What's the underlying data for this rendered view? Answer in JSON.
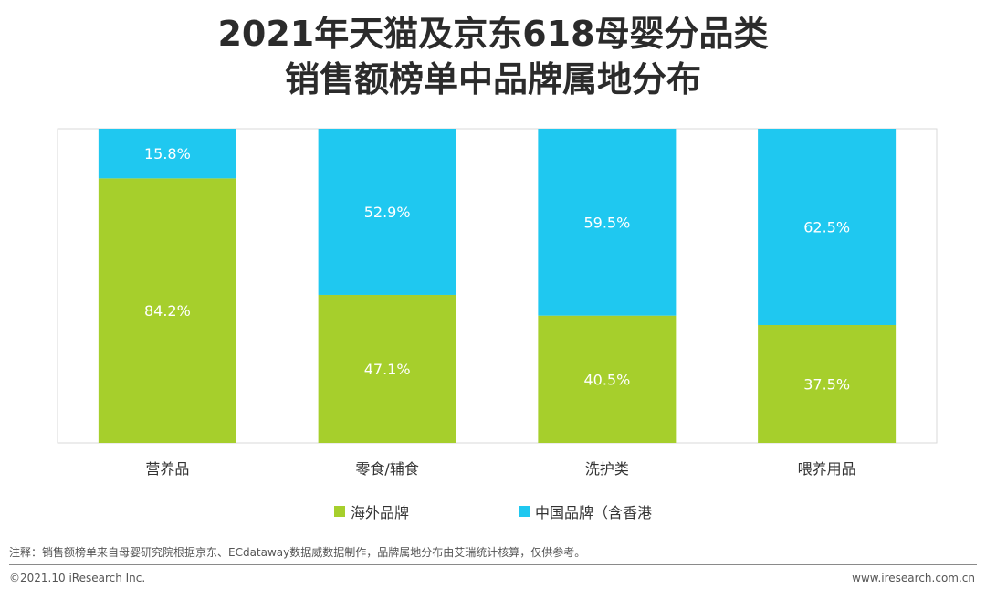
{
  "header": {
    "title_line1": "2021年天猫及京东618母婴分品类",
    "title_line2": "销售额榜单中品牌属地分布"
  },
  "chart_data": {
    "type": "bar",
    "stacked": true,
    "percent_stacked": true,
    "categories": [
      "营养品",
      "零食/辅食",
      "洗护类",
      "喂养用品"
    ],
    "series": [
      {
        "name": "海外品牌",
        "values": [
          84.2,
          47.1,
          40.5,
          37.5
        ],
        "labels": [
          "84.2%",
          "47.1%",
          "40.5%",
          "37.5%"
        ],
        "color": "#A6CF2C"
      },
      {
        "name": "中国品牌（含香港",
        "values": [
          15.8,
          52.9,
          59.5,
          62.5
        ],
        "labels": [
          "15.8%",
          "52.9%",
          "59.5%",
          "62.5%"
        ],
        "color": "#1FC8F0"
      }
    ],
    "ylim": [
      0,
      100
    ],
    "grid": false,
    "legend_position": "bottom"
  },
  "footer": {
    "note": "注释：销售额榜单来自母婴研究院根据京东、ECdataway数据威数据制作，品牌属地分布由艾瑞统计核算，仅供参考。",
    "copyright": "©2021.10 iResearch Inc.",
    "website": "www.iresearch.com.cn"
  },
  "colors": {
    "plot_border": "#d9d9d9",
    "axis_text": "#333333",
    "bar_label": "#ffffff"
  }
}
